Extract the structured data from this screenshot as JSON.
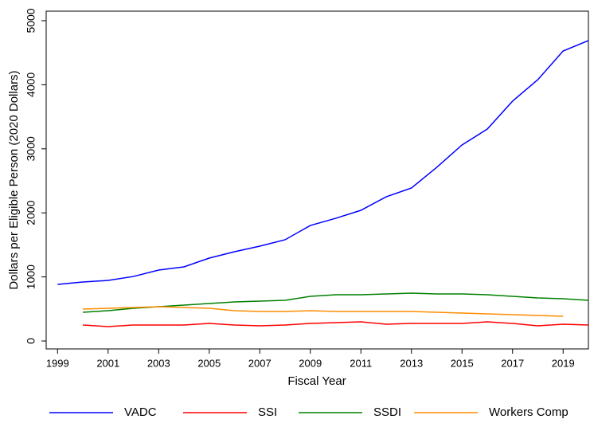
{
  "chart_data": {
    "type": "line",
    "x_label": "Fiscal Year",
    "y_label": "Dollars per Eligible Person (2020 Dollars)",
    "x": [
      1999,
      2000,
      2001,
      2002,
      2003,
      2004,
      2005,
      2006,
      2007,
      2008,
      2009,
      2010,
      2011,
      2012,
      2013,
      2014,
      2015,
      2016,
      2017,
      2018,
      2019,
      2020
    ],
    "series": [
      {
        "name": "VADC",
        "color": "#0000ff",
        "values": [
          883,
          920,
          945,
          1007,
          1107,
          1157,
          1294,
          1393,
          1480,
          1580,
          1803,
          1915,
          2040,
          2251,
          2388,
          2711,
          3060,
          3308,
          3744,
          4080,
          4527,
          4689
        ]
      },
      {
        "name": "SSI",
        "color": "#ff0000",
        "values": [
          null,
          249,
          224,
          249,
          249,
          249,
          274,
          249,
          236,
          249,
          274,
          286,
          299,
          261,
          274,
          274,
          274,
          299,
          274,
          236,
          261,
          249
        ]
      },
      {
        "name": "SSDI",
        "color": "#008000",
        "values": [
          null,
          448,
          473,
          510,
          535,
          560,
          585,
          609,
          622,
          634,
          697,
          721,
          721,
          734,
          746,
          734,
          734,
          721,
          697,
          672,
          659,
          634
        ]
      },
      {
        "name": "Workers Comp",
        "color": "#ff8c00",
        "values": [
          null,
          498,
          510,
          522,
          535,
          522,
          510,
          473,
          460,
          460,
          473,
          460,
          460,
          460,
          460,
          448,
          435,
          423,
          410,
          398,
          386,
          null
        ]
      }
    ],
    "xlim": [
      1998.55,
      2020
    ],
    "ylim": [
      -124,
      5149
    ],
    "xticks": [
      1999,
      2001,
      2003,
      2005,
      2007,
      2009,
      2011,
      2013,
      2015,
      2017,
      2019
    ],
    "yticks": [
      0,
      1000,
      2000,
      3000,
      4000,
      5000
    ],
    "legend": "bottom"
  }
}
